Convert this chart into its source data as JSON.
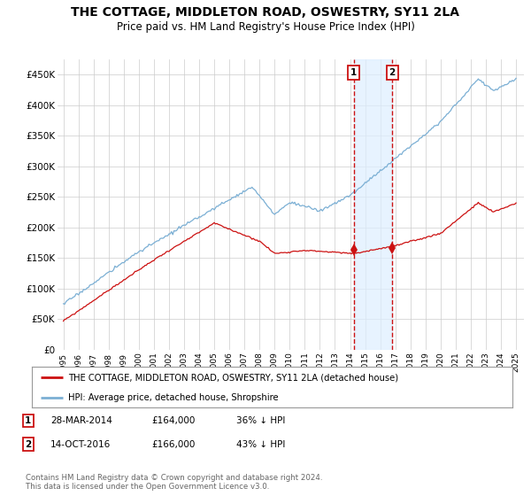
{
  "title": "THE COTTAGE, MIDDLETON ROAD, OSWESTRY, SY11 2LA",
  "subtitle": "Price paid vs. HM Land Registry's House Price Index (HPI)",
  "title_fontsize": 10,
  "subtitle_fontsize": 8.5,
  "background_color": "#ffffff",
  "plot_bg_color": "#ffffff",
  "grid_color": "#cccccc",
  "hpi_color": "#7bafd4",
  "price_color": "#cc1111",
  "sale1_date": 2014.24,
  "sale1_price": 164000,
  "sale1_label": "1",
  "sale2_date": 2016.79,
  "sale2_price": 166000,
  "sale2_label": "2",
  "xmin": 1994.6,
  "xmax": 2025.5,
  "ymin": 0,
  "ymax": 475000,
  "yticks": [
    0,
    50000,
    100000,
    150000,
    200000,
    250000,
    300000,
    350000,
    400000,
    450000
  ],
  "ytick_labels": [
    "£0",
    "£50K",
    "£100K",
    "£150K",
    "£200K",
    "£250K",
    "£300K",
    "£350K",
    "£400K",
    "£450K"
  ],
  "xticks": [
    1995,
    1996,
    1997,
    1998,
    1999,
    2000,
    2001,
    2002,
    2003,
    2004,
    2005,
    2006,
    2007,
    2008,
    2009,
    2010,
    2011,
    2012,
    2013,
    2014,
    2015,
    2016,
    2017,
    2018,
    2019,
    2020,
    2021,
    2022,
    2023,
    2024,
    2025
  ],
  "legend_house_label": "THE COTTAGE, MIDDLETON ROAD, OSWESTRY, SY11 2LA (detached house)",
  "legend_hpi_label": "HPI: Average price, detached house, Shropshire",
  "footer_line1": "Contains HM Land Registry data © Crown copyright and database right 2024.",
  "footer_line2": "This data is licensed under the Open Government Licence v3.0.",
  "table_rows": [
    {
      "num": "1",
      "date": "28-MAR-2014",
      "price": "£164,000",
      "pct": "36% ↓ HPI"
    },
    {
      "num": "2",
      "date": "14-OCT-2016",
      "price": "£166,000",
      "pct": "43% ↓ HPI"
    }
  ]
}
